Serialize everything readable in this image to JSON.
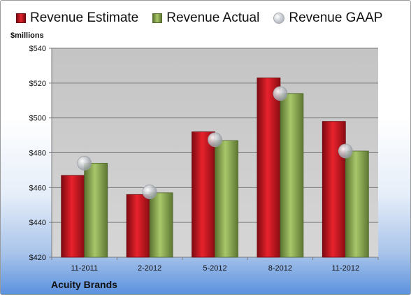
{
  "chart_data": {
    "type": "bar",
    "ylabel": "$millions",
    "company": "Acuity Brands",
    "categories": [
      "11-2011",
      "2-2012",
      "5-2012",
      "8-2012",
      "11-2012"
    ],
    "series": [
      {
        "name": "Revenue Estimate",
        "values": [
          467,
          456,
          492,
          523,
          498
        ],
        "color": "#d4121c"
      },
      {
        "name": "Revenue Actual",
        "values": [
          474,
          457,
          487,
          514,
          481
        ],
        "color": "#9bbb59"
      }
    ],
    "markers": {
      "name": "Revenue GAAP",
      "values": [
        474,
        457.5,
        487.5,
        514,
        481
      ],
      "color": "#bfc3c8"
    },
    "ylim": [
      420,
      540
    ],
    "yticks": [
      420,
      440,
      460,
      480,
      500,
      520,
      540
    ],
    "ytick_labels": [
      "$420",
      "$440",
      "$460",
      "$480",
      "$500",
      "$520",
      "$540"
    ],
    "grid": true,
    "legend_position": "top"
  }
}
